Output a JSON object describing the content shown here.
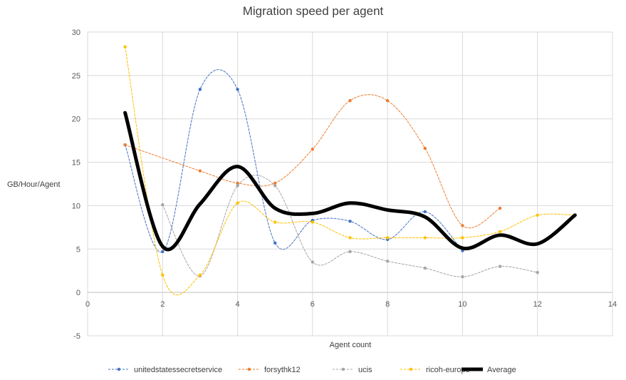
{
  "chart_data": {
    "type": "line",
    "title": "Migration speed per agent",
    "xlabel": "Agent count",
    "ylabel": "GB/Hour/Agent",
    "xlim": [
      0,
      14
    ],
    "ylim": [
      -5,
      30
    ],
    "xticks": [
      0,
      2,
      4,
      6,
      8,
      10,
      12,
      14
    ],
    "yticks": [
      -5,
      0,
      5,
      10,
      15,
      20,
      25,
      30
    ],
    "grid": true,
    "legend_position": "bottom",
    "series": [
      {
        "name": "unitedstatessecretservice",
        "color": "#4472C4",
        "style": "dashed-smooth",
        "points": [
          [
            1,
            17.0
          ],
          [
            2,
            4.7
          ],
          [
            3,
            23.4
          ],
          [
            4,
            23.4
          ],
          [
            5,
            5.7
          ],
          [
            6,
            8.3
          ],
          [
            7,
            8.2
          ],
          [
            8,
            6.1
          ],
          [
            9,
            9.3
          ],
          [
            10,
            4.8
          ]
        ]
      },
      {
        "name": "forsythk12",
        "color": "#ED7D31",
        "style": "dashed-smooth",
        "points": [
          [
            1,
            17.0
          ],
          [
            3,
            14.0
          ],
          [
            4,
            12.6
          ],
          [
            5,
            12.6
          ],
          [
            6,
            16.5
          ],
          [
            7,
            22.1
          ],
          [
            8,
            22.1
          ],
          [
            9,
            16.6
          ],
          [
            10,
            7.7
          ],
          [
            11,
            9.7
          ]
        ]
      },
      {
        "name": "ucis",
        "color": "#A5A5A5",
        "style": "dashed-smooth",
        "points": [
          [
            2,
            10.1
          ],
          [
            3,
            1.9
          ],
          [
            4,
            12.3
          ],
          [
            5,
            12.3
          ],
          [
            6,
            3.5
          ],
          [
            7,
            4.7
          ],
          [
            8,
            3.6
          ],
          [
            9,
            2.8
          ],
          [
            10,
            1.8
          ],
          [
            11,
            3.0
          ],
          [
            12,
            2.3
          ]
        ]
      },
      {
        "name": "ricoh-europe",
        "color": "#FFC000",
        "style": "dashed-smooth",
        "points": [
          [
            1,
            28.3
          ],
          [
            2,
            2.0
          ],
          [
            3,
            2.0
          ],
          [
            4,
            10.3
          ],
          [
            5,
            8.1
          ],
          [
            6,
            8.1
          ],
          [
            7,
            6.3
          ],
          [
            8,
            6.3
          ],
          [
            9,
            6.3
          ],
          [
            10,
            6.3
          ],
          [
            11,
            7.0
          ],
          [
            12,
            8.9
          ],
          [
            13,
            8.9
          ]
        ]
      },
      {
        "name": "Average",
        "color": "#000000",
        "style": "solid-thick-smooth",
        "points": [
          [
            1,
            20.7
          ],
          [
            2,
            5.3
          ],
          [
            3,
            10.2
          ],
          [
            4,
            14.5
          ],
          [
            5,
            9.7
          ],
          [
            6,
            9.1
          ],
          [
            7,
            10.3
          ],
          [
            8,
            9.5
          ],
          [
            9,
            8.7
          ],
          [
            10,
            5.1
          ],
          [
            11,
            6.6
          ],
          [
            12,
            5.6
          ],
          [
            13,
            8.9
          ]
        ]
      }
    ]
  }
}
